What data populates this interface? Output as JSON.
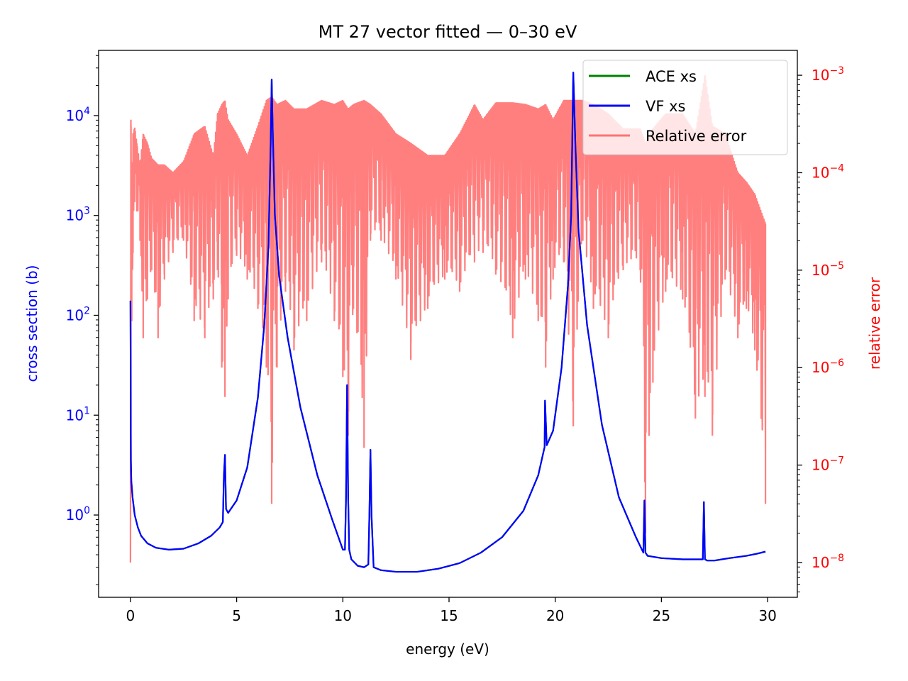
{
  "chart_data": {
    "type": "line",
    "title": "MT 27 vector fitted — 0–30 eV",
    "xlabel": "energy (eV)",
    "ylabel_left": "cross section (b)",
    "ylabel_right": "relative error",
    "xlim": [
      -1.5,
      31.4
    ],
    "ylim_left": [
      0.15,
      45000
    ],
    "ylim_right": [
      4.4e-09,
      0.0018
    ],
    "yscale_left": "log",
    "yscale_right": "log",
    "x_ticks": [
      0,
      5,
      10,
      15,
      20,
      25,
      30
    ],
    "x_tick_labels": [
      "0",
      "5",
      "10",
      "15",
      "20",
      "25",
      "30"
    ],
    "y_left_ticks": [
      1,
      10,
      100,
      1000,
      10000
    ],
    "y_left_tick_labels": [
      {
        "base": "10",
        "exp": "0"
      },
      {
        "base": "10",
        "exp": "1"
      },
      {
        "base": "10",
        "exp": "2"
      },
      {
        "base": "10",
        "exp": "3"
      },
      {
        "base": "10",
        "exp": "4"
      }
    ],
    "y_right_ticks": [
      1e-08,
      1e-07,
      1e-06,
      1e-05,
      0.0001,
      0.001
    ],
    "y_right_tick_labels": [
      {
        "base": "10",
        "exp": "−8"
      },
      {
        "base": "10",
        "exp": "−7"
      },
      {
        "base": "10",
        "exp": "−6"
      },
      {
        "base": "10",
        "exp": "−5"
      },
      {
        "base": "10",
        "exp": "−4"
      },
      {
        "base": "10",
        "exp": "−3"
      }
    ],
    "legend": {
      "placement": "upper-right",
      "entries": [
        {
          "label": "ACE xs",
          "color": "#008000"
        },
        {
          "label": "VF xs",
          "color": "#0000ff"
        },
        {
          "label": "Relative error",
          "color": "#ff0000"
        }
      ]
    },
    "colors": {
      "left_axis": "#0000ff",
      "right_axis": "#ff0000",
      "relative_error": "#ff0000",
      "relative_error_alpha": 0.5
    },
    "series": [
      {
        "name": "ACE xs",
        "axis": "left",
        "color": "#008000",
        "x": [
          0.0,
          0.02,
          0.04,
          0.1,
          0.2,
          0.35,
          0.5,
          0.8,
          1.2,
          1.8,
          2.5,
          3.2,
          3.8,
          4.2,
          4.35,
          4.4,
          4.45,
          4.5,
          4.6,
          5.0,
          5.5,
          6.0,
          6.3,
          6.5,
          6.6,
          6.65,
          6.7,
          6.8,
          7.0,
          7.4,
          8.0,
          8.8,
          9.5,
          10.0,
          10.1,
          10.15,
          10.2,
          10.25,
          10.3,
          10.4,
          10.7,
          11.0,
          11.2,
          11.25,
          11.3,
          11.35,
          11.45,
          11.8,
          12.5,
          13.5,
          14.5,
          15.5,
          16.5,
          17.5,
          18.5,
          19.2,
          19.5,
          19.52,
          19.6,
          19.9,
          20.3,
          20.6,
          20.75,
          20.85,
          20.95,
          21.1,
          21.5,
          22.2,
          23.0,
          23.8,
          24.15,
          24.2,
          24.25,
          24.35,
          25.0,
          26.0,
          26.8,
          26.95,
          27.0,
          27.05,
          27.15,
          27.5,
          28.2,
          29.0,
          29.5,
          29.9
        ],
        "y": [
          140,
          3.5,
          2.2,
          1.5,
          1.0,
          0.75,
          0.62,
          0.52,
          0.47,
          0.45,
          0.46,
          0.52,
          0.62,
          0.75,
          0.85,
          2.5,
          4.0,
          1.15,
          1.05,
          1.4,
          3.0,
          15,
          80,
          500,
          5000,
          23000,
          7000,
          1000,
          250,
          60,
          12,
          2.5,
          0.9,
          0.45,
          0.45,
          1.5,
          20,
          1.5,
          0.45,
          0.36,
          0.31,
          0.3,
          0.32,
          1.0,
          4.5,
          1.0,
          0.3,
          0.28,
          0.27,
          0.27,
          0.29,
          0.33,
          0.42,
          0.6,
          1.1,
          2.5,
          4.8,
          14,
          5.0,
          7.0,
          30,
          200,
          1000,
          27000,
          5000,
          700,
          80,
          8,
          1.5,
          0.6,
          0.42,
          1.4,
          0.42,
          0.39,
          0.37,
          0.36,
          0.36,
          0.36,
          1.35,
          0.36,
          0.35,
          0.35,
          0.37,
          0.39,
          0.41,
          0.43
        ]
      },
      {
        "name": "VF xs",
        "axis": "left",
        "color": "#0000ff",
        "x": [
          0.0,
          0.02,
          0.04,
          0.1,
          0.2,
          0.35,
          0.5,
          0.8,
          1.2,
          1.8,
          2.5,
          3.2,
          3.8,
          4.2,
          4.35,
          4.4,
          4.45,
          4.5,
          4.6,
          5.0,
          5.5,
          6.0,
          6.3,
          6.5,
          6.6,
          6.65,
          6.7,
          6.8,
          7.0,
          7.4,
          8.0,
          8.8,
          9.5,
          10.0,
          10.1,
          10.15,
          10.2,
          10.25,
          10.3,
          10.4,
          10.7,
          11.0,
          11.2,
          11.25,
          11.3,
          11.35,
          11.45,
          11.8,
          12.5,
          13.5,
          14.5,
          15.5,
          16.5,
          17.5,
          18.5,
          19.2,
          19.5,
          19.52,
          19.6,
          19.9,
          20.3,
          20.6,
          20.75,
          20.85,
          20.95,
          21.1,
          21.5,
          22.2,
          23.0,
          23.8,
          24.15,
          24.2,
          24.25,
          24.35,
          25.0,
          26.0,
          26.8,
          26.95,
          27.0,
          27.05,
          27.15,
          27.5,
          28.2,
          29.0,
          29.5,
          29.9
        ],
        "y": [
          140,
          3.5,
          2.2,
          1.5,
          1.0,
          0.75,
          0.62,
          0.52,
          0.47,
          0.45,
          0.46,
          0.52,
          0.62,
          0.75,
          0.85,
          2.5,
          4.0,
          1.15,
          1.05,
          1.4,
          3.0,
          15,
          80,
          500,
          5000,
          23000,
          7000,
          1000,
          250,
          60,
          12,
          2.5,
          0.9,
          0.45,
          0.45,
          1.5,
          20,
          1.5,
          0.45,
          0.36,
          0.31,
          0.3,
          0.32,
          1.0,
          4.5,
          1.0,
          0.3,
          0.28,
          0.27,
          0.27,
          0.29,
          0.33,
          0.42,
          0.6,
          1.1,
          2.5,
          4.8,
          14,
          5.0,
          7.0,
          30,
          200,
          1000,
          27000,
          5000,
          700,
          80,
          8,
          1.5,
          0.6,
          0.42,
          1.4,
          0.42,
          0.39,
          0.37,
          0.36,
          0.36,
          0.36,
          1.35,
          0.36,
          0.35,
          0.35,
          0.37,
          0.39,
          0.41,
          0.43
        ]
      },
      {
        "name": "Relative error",
        "axis": "right",
        "color": "#ff0000",
        "x": [
          0.0,
          0.02,
          0.06,
          0.12,
          0.2,
          0.3,
          0.45,
          0.6,
          0.8,
          1.0,
          1.3,
          1.6,
          2.0,
          2.5,
          3.0,
          3.5,
          3.9,
          4.1,
          4.3,
          4.45,
          4.6,
          5.0,
          5.5,
          6.0,
          6.4,
          6.65,
          6.9,
          7.3,
          7.7,
          8.3,
          9.0,
          9.6,
          10.0,
          10.25,
          10.5,
          11.0,
          11.3,
          11.8,
          12.5,
          13.2,
          14.0,
          14.8,
          15.5,
          16.2,
          16.6,
          17.2,
          18.0,
          18.6,
          19.2,
          19.55,
          19.9,
          20.4,
          20.85,
          21.3,
          21.8,
          22.5,
          23.2,
          24.0,
          24.25,
          24.6,
          25.2,
          26.0,
          26.6,
          27.05,
          27.4,
          28.0,
          28.6,
          29.0,
          29.4,
          29.9
        ],
        "y_upper": [
          1e-08,
          0.00035,
          0.0001,
          0.00025,
          0.00029,
          0.0002,
          0.00012,
          0.00025,
          0.0002,
          0.00014,
          0.00012,
          0.00012,
          0.0001,
          0.00013,
          0.00025,
          0.0003,
          0.00015,
          0.0004,
          0.0005,
          0.00055,
          0.00035,
          0.00025,
          0.00015,
          0.0003,
          0.00055,
          0.0006,
          0.0005,
          0.00055,
          0.00045,
          0.00045,
          0.00055,
          0.0005,
          0.00055,
          0.00045,
          0.0005,
          0.00055,
          0.0005,
          0.0004,
          0.00025,
          0.0002,
          0.00015,
          0.00015,
          0.00025,
          0.0005,
          0.00035,
          0.00052,
          0.00052,
          0.0005,
          0.00045,
          0.0005,
          0.00035,
          0.00055,
          0.00055,
          0.00055,
          0.0005,
          0.0004,
          0.00028,
          0.00028,
          0.0002,
          0.00028,
          0.0004,
          0.0004,
          0.00025,
          0.001,
          0.0003,
          0.00025,
          0.0001,
          8e-05,
          6e-05,
          3e-05
        ],
        "y_lower": [
          1e-08,
          1e-07,
          3e-06,
          1.5e-05,
          5e-05,
          4e-05,
          2e-05,
          2e-06,
          5e-06,
          1e-05,
          2e-06,
          8e-06,
          1.5e-05,
          2e-05,
          3e-06,
          2e-06,
          5e-06,
          1e-05,
          1e-06,
          5e-07,
          5e-06,
          1.4e-05,
          8e-06,
          4e-06,
          1e-06,
          4e-08,
          1e-06,
          6e-06,
          1.5e-06,
          3e-06,
          1.2e-05,
          3e-06,
          8e-07,
          2e-07,
          4e-06,
          1.5e-07,
          2e-05,
          2e-05,
          8e-06,
          1.2e-06,
          4e-06,
          8e-06,
          6e-06,
          1.2e-05,
          1.5e-05,
          9e-06,
          2e-06,
          8e-06,
          3e-06,
          1e-06,
          8e-06,
          1.2e-05,
          2.5e-07,
          2e-05,
          4e-06,
          2e-06,
          1e-05,
          1e-05,
          2e-08,
          7e-07,
          6e-06,
          5e-06,
          3e-07,
          5e-07,
          2e-07,
          8e-06,
          2e-06,
          4e-06,
          1.5e-06,
          4e-08
        ]
      }
    ]
  }
}
